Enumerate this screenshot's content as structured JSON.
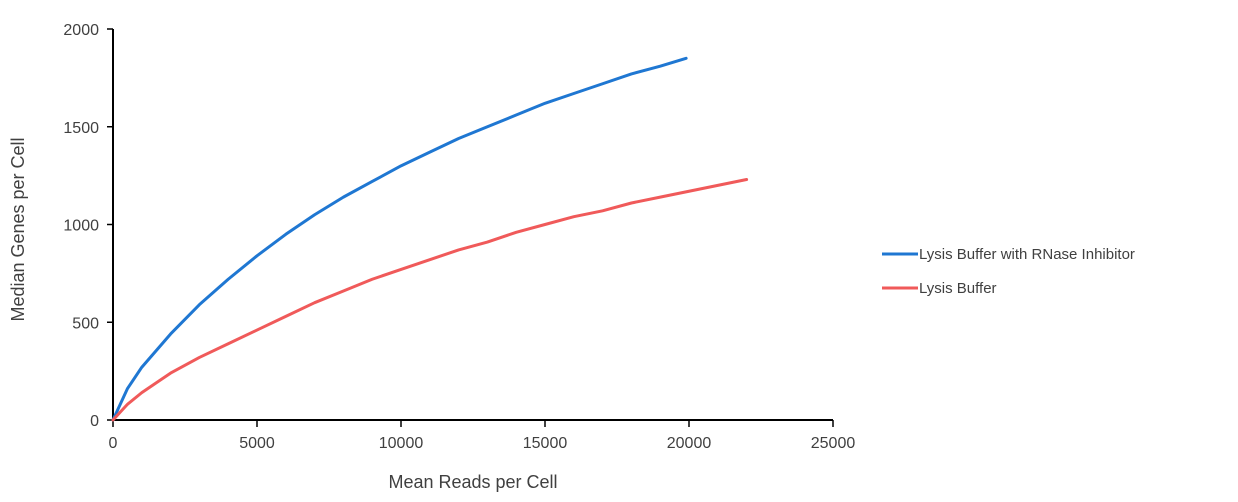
{
  "chart_data": {
    "type": "line",
    "title": "",
    "xlabel": "Mean Reads per Cell",
    "ylabel": "Median Genes per Cell",
    "xlim": [
      0,
      25000
    ],
    "ylim": [
      0,
      2000
    ],
    "x_ticks": [
      0,
      5000,
      10000,
      15000,
      20000,
      25000
    ],
    "y_ticks": [
      0,
      500,
      1000,
      1500,
      2000
    ],
    "x_tick_labels": [
      "0",
      "5000",
      "10000",
      "15000",
      "20000",
      "25000"
    ],
    "y_tick_labels": [
      "0",
      "500",
      "1000",
      "1500",
      "2000"
    ],
    "grid": false,
    "legend_position": "right",
    "series": [
      {
        "name": "Lysis Buffer with RNase Inhibitor",
        "color": "#1f77d2",
        "x": [
          0,
          500,
          1000,
          2000,
          3000,
          4000,
          5000,
          6000,
          7000,
          8000,
          9000,
          10000,
          11000,
          12000,
          13000,
          14000,
          15000,
          16000,
          17000,
          18000,
          19000,
          19900
        ],
        "y": [
          0,
          160,
          270,
          440,
          590,
          720,
          840,
          950,
          1050,
          1140,
          1220,
          1300,
          1370,
          1440,
          1500,
          1560,
          1620,
          1670,
          1720,
          1770,
          1810,
          1850
        ]
      },
      {
        "name": "Lysis Buffer",
        "color": "#f05a5a",
        "x": [
          0,
          500,
          1000,
          2000,
          3000,
          4000,
          5000,
          6000,
          7000,
          8000,
          9000,
          10000,
          11000,
          12000,
          13000,
          14000,
          15000,
          16000,
          17000,
          18000,
          19000,
          20000,
          21000,
          22000
        ],
        "y": [
          0,
          80,
          140,
          240,
          320,
          390,
          460,
          530,
          600,
          660,
          720,
          770,
          820,
          870,
          910,
          960,
          1000,
          1040,
          1070,
          1110,
          1140,
          1170,
          1200,
          1230
        ]
      }
    ]
  }
}
